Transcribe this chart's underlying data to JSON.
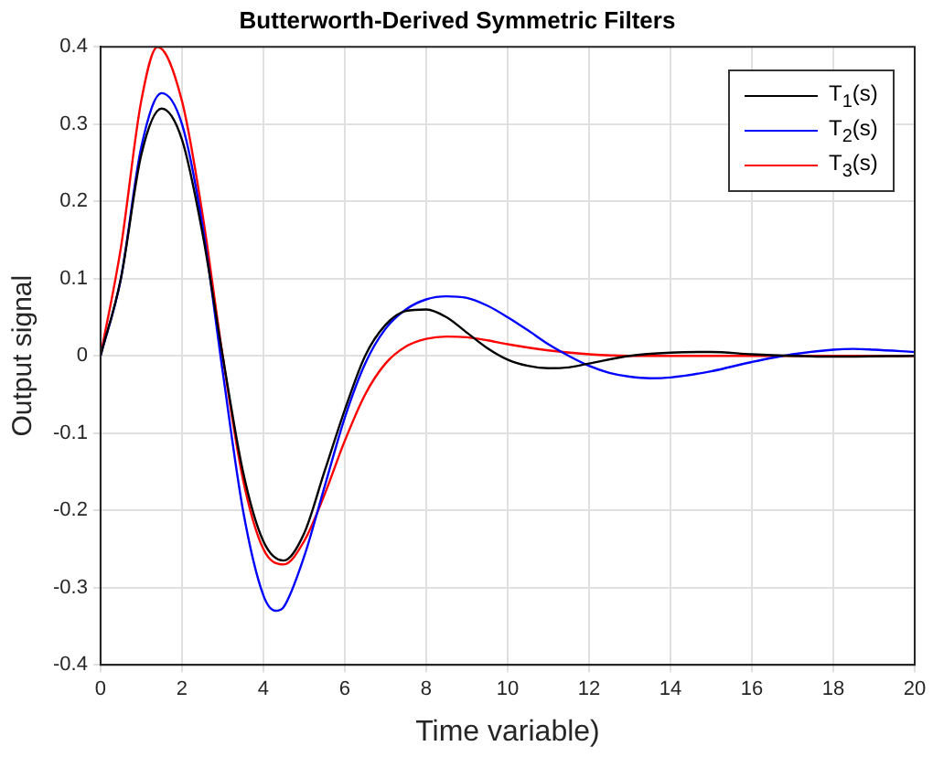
{
  "chart_data": {
    "type": "line",
    "title": "Butterworth-Derived Symmetric Filters",
    "xlabel": "Time variable)",
    "ylabel": "Output signal",
    "xlim": [
      0,
      20
    ],
    "xticks": [
      0,
      2,
      4,
      6,
      8,
      10,
      12,
      14,
      16,
      18,
      20
    ],
    "ylim": [
      -0.4,
      0.4
    ],
    "yticks": [
      -0.4,
      -0.3,
      -0.2,
      -0.1,
      0,
      0.1,
      0.2,
      0.3,
      0.4
    ],
    "grid": true,
    "legend": "top right",
    "marker": "none",
    "line_style": "solid",
    "series": [
      {
        "name": "T$_{1}$(s)",
        "color": "#000000",
        "x": [
          0,
          0.5,
          1,
          1.5,
          2,
          2.5,
          3,
          3.5,
          4,
          4.5,
          5,
          5.5,
          6,
          6.5,
          7,
          7.5,
          8,
          8.5,
          9,
          9.5,
          10,
          10.5,
          11,
          11.5,
          12,
          13,
          14,
          15,
          16,
          17,
          18,
          20
        ],
        "values": [
          0,
          0.1,
          0.26,
          0.32,
          0.28,
          0.16,
          0,
          -0.15,
          -0.24,
          -0.265,
          -0.23,
          -0.15,
          -0.07,
          0,
          0.04,
          0.058,
          0.06,
          0.05,
          0.03,
          0.01,
          -0.005,
          -0.013,
          -0.016,
          -0.015,
          -0.01,
          0,
          0.004,
          0.005,
          0.002,
          0,
          -0.001,
          0
        ]
      },
      {
        "name": "T$_{2}$(s)",
        "color": "#0000ff",
        "x": [
          0,
          0.5,
          1,
          1.5,
          2,
          2.5,
          3,
          3.5,
          4,
          4.3,
          4.5,
          5,
          5.5,
          6,
          6.5,
          7,
          7.5,
          8,
          8.5,
          9,
          9.5,
          10,
          10.5,
          11,
          11.5,
          12,
          12.5,
          13,
          13.5,
          14,
          15,
          16,
          17,
          18,
          18.5,
          19,
          20
        ],
        "values": [
          0,
          0.1,
          0.27,
          0.34,
          0.3,
          0.17,
          -0.02,
          -0.2,
          -0.31,
          -0.33,
          -0.325,
          -0.26,
          -0.17,
          -0.08,
          -0.01,
          0.035,
          0.06,
          0.073,
          0.077,
          0.075,
          0.065,
          0.05,
          0.033,
          0.015,
          0,
          -0.013,
          -0.022,
          -0.027,
          -0.029,
          -0.028,
          -0.02,
          -0.008,
          0.002,
          0.008,
          0.009,
          0.008,
          0.005
        ]
      },
      {
        "name": "T$_{3}$(s)",
        "color": "#ff0000",
        "x": [
          0,
          0.5,
          1,
          1.4,
          2,
          2.5,
          3,
          3.5,
          4,
          4.5,
          5,
          5.5,
          6,
          6.5,
          7,
          7.5,
          8,
          8.5,
          9,
          9.5,
          10,
          11,
          12,
          13,
          20
        ],
        "values": [
          0,
          0.14,
          0.33,
          0.4,
          0.33,
          0.185,
          0,
          -0.16,
          -0.25,
          -0.27,
          -0.24,
          -0.18,
          -0.11,
          -0.05,
          -0.01,
          0.012,
          0.022,
          0.025,
          0.024,
          0.02,
          0.015,
          0.007,
          0.002,
          0,
          0
        ]
      }
    ]
  }
}
